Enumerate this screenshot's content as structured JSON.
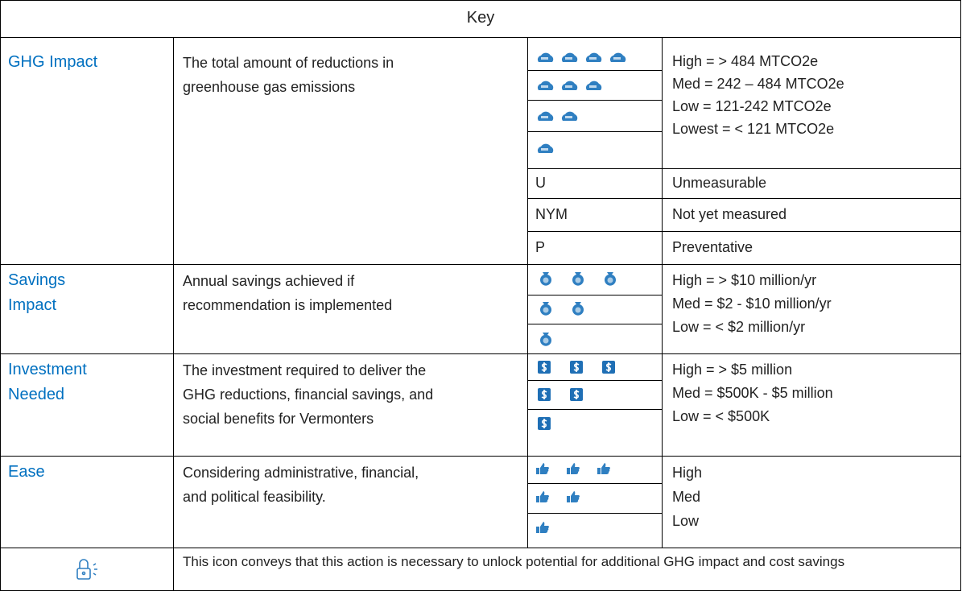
{
  "header": {
    "title": "Key"
  },
  "rows": [
    {
      "label": [
        "GHG Impact"
      ],
      "description": [
        "The total amount of reductions in",
        "greenhouse gas emissions"
      ],
      "levels": [
        "High = > 484 MTCO2e",
        "Med = 242 – 484 MTCO2e",
        "Low = 121-242 MTCO2e",
        "Lowest = < 121 MTCO2e"
      ],
      "codes": [
        {
          "code": "U",
          "meaning": "Unmeasurable"
        },
        {
          "code": "NYM",
          "meaning": "Not yet measured"
        },
        {
          "code": "P",
          "meaning": "Preventative"
        }
      ]
    },
    {
      "label": [
        "Savings",
        "Impact"
      ],
      "description": [
        "Annual savings achieved if",
        "recommendation is implemented"
      ],
      "levels": [
        "High = > $10 million/yr",
        "Med = $2 - $10 million/yr",
        "Low = < $2 million/yr"
      ]
    },
    {
      "label": [
        "Investment",
        "Needed"
      ],
      "description": [
        "The investment required to deliver the",
        "GHG reductions, financial savings, and",
        "social benefits for Vermonters"
      ],
      "levels": [
        "High = > $5 million",
        "Med = $500K - $5 million",
        "Low = < $500K"
      ]
    },
    {
      "label": [
        "Ease"
      ],
      "description": [
        "Considering administrative, financial,",
        "and political feasibility."
      ],
      "levels": [
        "High",
        "Med",
        "Low"
      ]
    }
  ],
  "footer": {
    "text": "This icon conveys that this action is necessary to unlock potential for additional GHG impact and cost savings"
  }
}
